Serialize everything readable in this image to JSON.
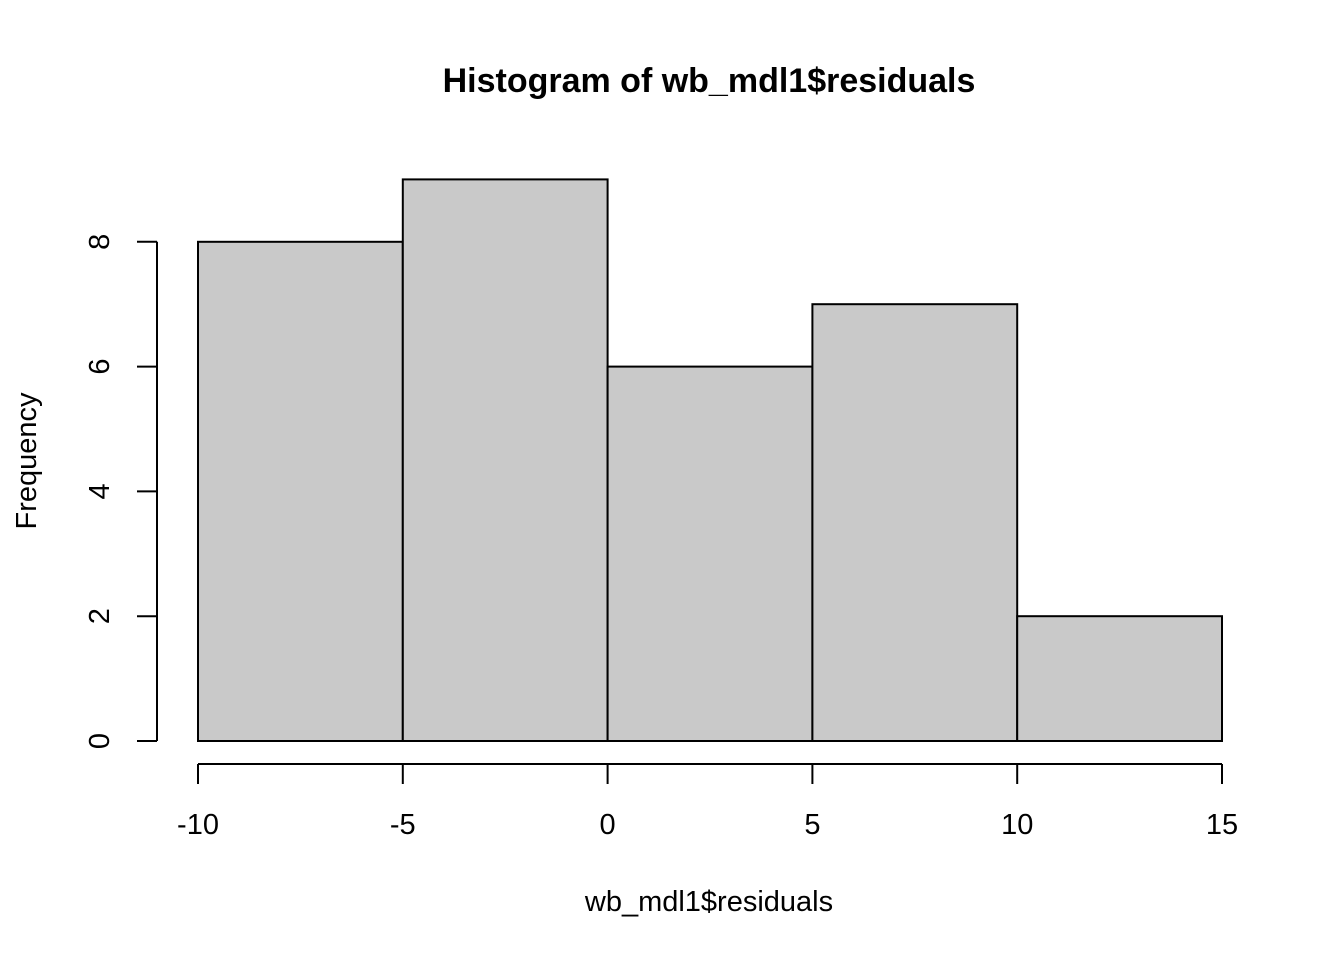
{
  "colors": {
    "bar_fill": "#c9c9c9",
    "bar_stroke": "#000000",
    "axis": "#000000",
    "background": "#ffffff"
  },
  "chart_data": {
    "type": "bar",
    "subtype": "histogram",
    "title": "Histogram of wb_mdl1$residuals",
    "xlabel": "wb_mdl1$residuals",
    "ylabel": "Frequency",
    "bins": [
      {
        "from": -10,
        "to": -5,
        "count": 8
      },
      {
        "from": -5,
        "to": 0,
        "count": 9
      },
      {
        "from": 0,
        "to": 5,
        "count": 6
      },
      {
        "from": 5,
        "to": 10,
        "count": 7
      },
      {
        "from": 10,
        "to": 15,
        "count": 2
      }
    ],
    "xlim": [
      -10,
      15
    ],
    "ylim": [
      0,
      9
    ],
    "x_ticks": [
      -10,
      -5,
      0,
      5,
      10,
      15
    ],
    "x_tick_labels": [
      "-10",
      "-5",
      "0",
      "5",
      "10",
      "15"
    ],
    "y_ticks": [
      0,
      2,
      4,
      6,
      8
    ],
    "y_tick_labels": [
      "0",
      "2",
      "4",
      "6",
      "8"
    ],
    "grid": false,
    "legend": "none"
  }
}
